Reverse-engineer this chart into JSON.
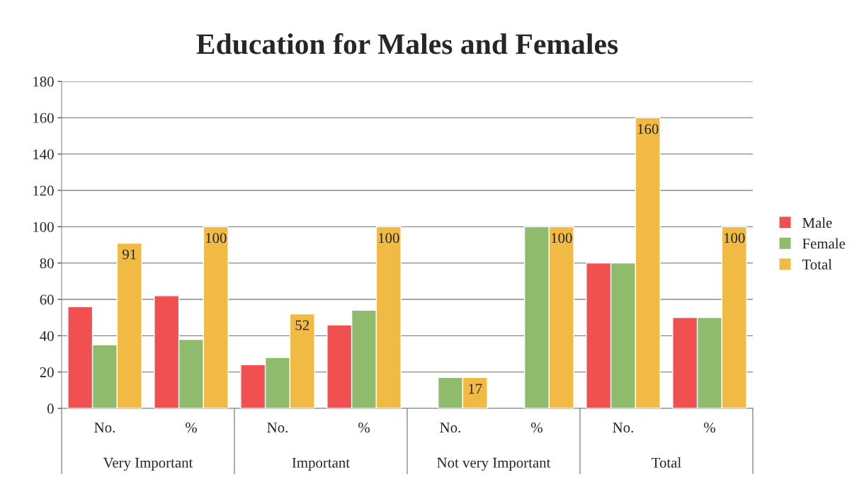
{
  "chart_data": {
    "type": "bar",
    "title": "Education for Males and Females",
    "categories": [
      "No.",
      "%",
      "No.",
      "%",
      "No.",
      "%",
      "No.",
      "%"
    ],
    "series": [
      {
        "name": "Male",
        "color": "#f05050",
        "values": [
          56,
          62,
          24,
          46,
          null,
          null,
          80,
          50
        ]
      },
      {
        "name": "Female",
        "color": "#8fbb6c",
        "values": [
          35,
          38,
          28,
          54,
          17,
          100,
          80,
          50
        ]
      },
      {
        "name": "Total",
        "color": "#f0ba45",
        "values": [
          91,
          100,
          52,
          100,
          17,
          100,
          160,
          100
        ],
        "value_labels": [
          "91",
          "100",
          "52",
          "100",
          "17",
          "100",
          "160",
          "100"
        ]
      }
    ],
    "annotations": [
      "Very Important",
      "Important",
      "Not very Important",
      "Total"
    ],
    "ylim": [
      0,
      180
    ],
    "yticks": [
      0,
      20,
      40,
      60,
      80,
      100,
      120,
      140,
      160,
      180
    ],
    "grid": "y",
    "legend": "right"
  }
}
